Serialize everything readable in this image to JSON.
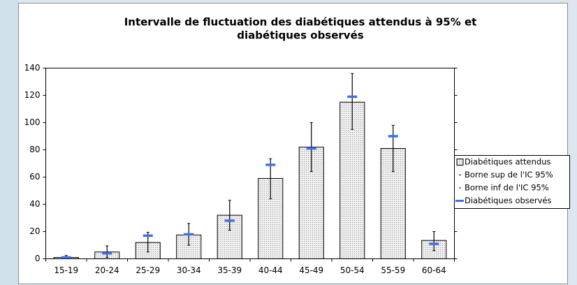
{
  "chart_data": {
    "type": "bar",
    "title": [
      "Intervalle de fluctuation des diabétiques attendus à 95% et",
      "diabétiques observés"
    ],
    "categories": [
      "15-19",
      "20-24",
      "25-29",
      "30-34",
      "35-39",
      "40-44",
      "45-49",
      "50-54",
      "55-59",
      "60-64"
    ],
    "series": [
      {
        "name": "Diabétiques attendus",
        "color": "#d6d6d6",
        "values": [
          1,
          5,
          12,
          17.5,
          32,
          59,
          82,
          115,
          81,
          13.5
        ]
      },
      {
        "name": "Borne sup de l'IC 95%",
        "color": "#000000",
        "values": [
          2.5,
          9.5,
          19.5,
          26,
          43,
          73.5,
          100,
          136,
          98,
          20
        ]
      },
      {
        "name": "Borne inf de l'IC 95%",
        "color": "#000000",
        "values": [
          0,
          1,
          5,
          10,
          21,
          44,
          64,
          95,
          64,
          6
        ]
      },
      {
        "name": "Diabétiques observés",
        "color": "#3f6fe8",
        "values": [
          1,
          4,
          17,
          18,
          28,
          69,
          81,
          119,
          90,
          11
        ]
      }
    ],
    "ylim": [
      0,
      140
    ],
    "yticks": [
      0,
      20,
      40,
      60,
      80,
      100,
      120,
      140
    ],
    "legend": "right"
  }
}
